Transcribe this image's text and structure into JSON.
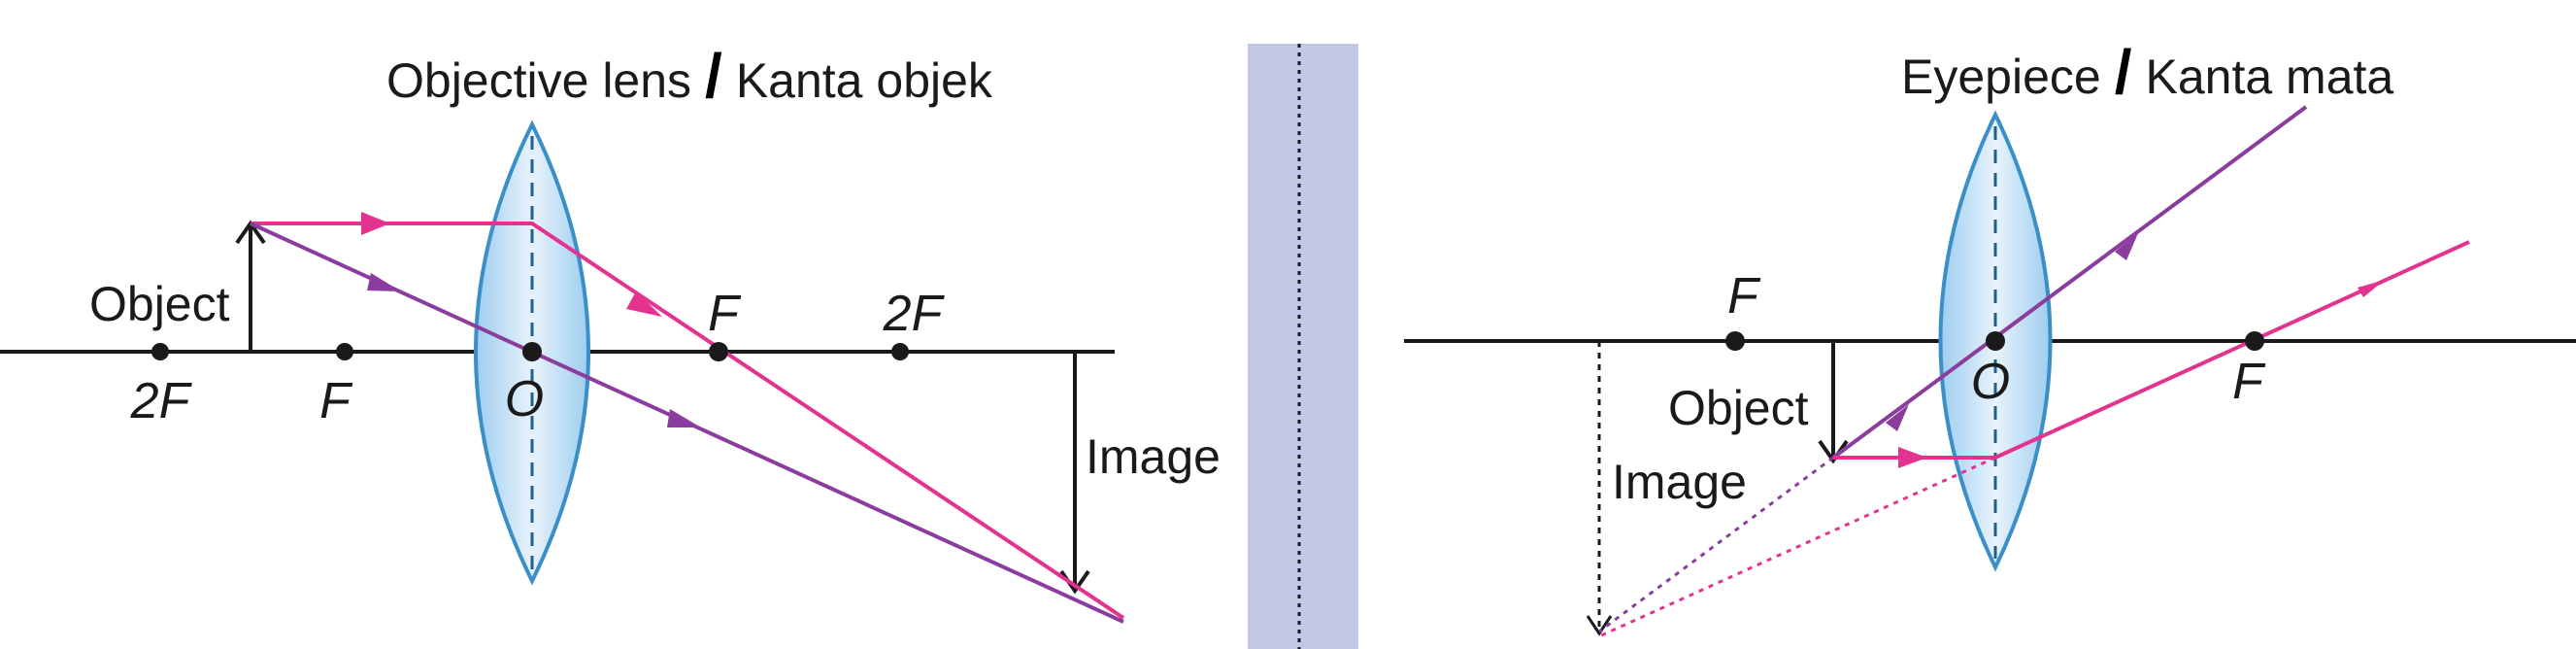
{
  "objective_diagram": {
    "title_en": "Objective lens",
    "title_sep": "/",
    "title_ms": "Kanta objek",
    "object_label": "Object",
    "image_label": "Image",
    "points": {
      "two_f_left": "2F",
      "f_left": "F",
      "o": "O",
      "f_right": "F",
      "two_f_right": "2F"
    }
  },
  "eyepiece_diagram": {
    "title_en": "Eyepiece",
    "title_sep": "/",
    "title_ms": "Kanta mata",
    "object_label": "Object",
    "image_label": "Image",
    "points": {
      "f_left": "F",
      "o": "O",
      "f_right": "F"
    }
  },
  "colors": {
    "lens_fill": "#cfe6f7",
    "lens_stroke": "#3a8fc9",
    "ray_pink": "#e4338f",
    "ray_purple": "#8b3d9e",
    "divider": "#c3c8e6",
    "axis": "#1a1a1a"
  }
}
